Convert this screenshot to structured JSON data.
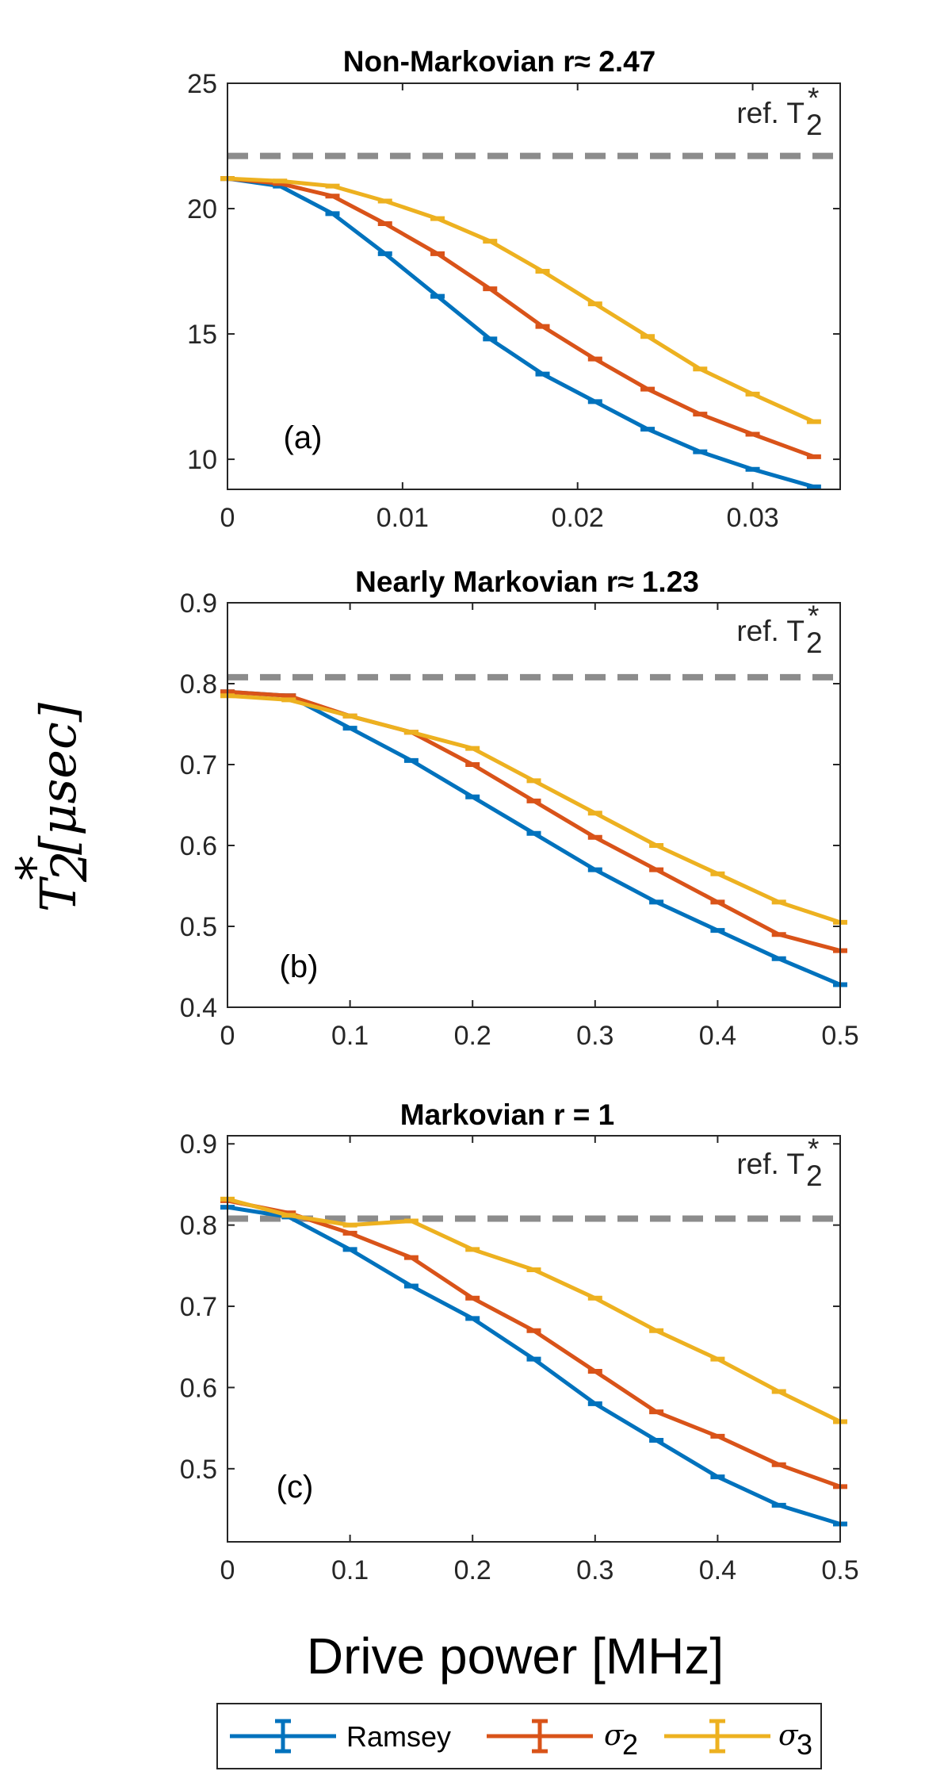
{
  "chart_data": [
    {
      "type": "line",
      "title": "Non-Markovian r≈ 2.47",
      "panel_label": "(a)",
      "ref_label": "ref. T",
      "ref_sub": "2",
      "ref_sup": "*",
      "ref_value": 22.1,
      "xlim": [
        0,
        0.035
      ],
      "ylim": [
        8.8,
        25
      ],
      "xticks": [
        0,
        0.01,
        0.02,
        0.03
      ],
      "xtick_labels": [
        "0",
        "0.01",
        "0.02",
        "0.03"
      ],
      "yticks": [
        10,
        15,
        20,
        25
      ],
      "ytick_labels": [
        "10",
        "15",
        "20",
        "25"
      ],
      "series": [
        {
          "name": "Ramsey",
          "color": "#0072BD",
          "x": [
            0,
            0.003,
            0.006,
            0.009,
            0.012,
            0.015,
            0.018,
            0.021,
            0.024,
            0.027,
            0.03,
            0.0335
          ],
          "y": [
            21.2,
            20.9,
            19.8,
            18.2,
            16.5,
            14.8,
            13.4,
            12.3,
            11.2,
            10.3,
            9.6,
            8.9
          ]
        },
        {
          "name": "σ₂",
          "color": "#D95319",
          "x": [
            0,
            0.003,
            0.006,
            0.009,
            0.012,
            0.015,
            0.018,
            0.021,
            0.024,
            0.027,
            0.03,
            0.0335
          ],
          "y": [
            21.2,
            21.0,
            20.5,
            19.4,
            18.2,
            16.8,
            15.3,
            14.0,
            12.8,
            11.8,
            11.0,
            10.1
          ]
        },
        {
          "name": "σ₃",
          "color": "#EDB120",
          "x": [
            0,
            0.003,
            0.006,
            0.009,
            0.012,
            0.015,
            0.018,
            0.021,
            0.024,
            0.027,
            0.03,
            0.0335
          ],
          "y": [
            21.2,
            21.1,
            20.9,
            20.3,
            19.6,
            18.7,
            17.5,
            16.2,
            14.9,
            13.6,
            12.6,
            11.5
          ]
        }
      ]
    },
    {
      "type": "line",
      "title": "Nearly Markovian r≈ 1.23",
      "panel_label": "(b)",
      "ref_label": "ref. T",
      "ref_sub": "2",
      "ref_sup": "*",
      "ref_value": 0.808,
      "xlim": [
        0,
        0.5
      ],
      "ylim": [
        0.4,
        0.9
      ],
      "xticks": [
        0,
        0.1,
        0.2,
        0.3,
        0.4,
        0.5
      ],
      "xtick_labels": [
        "0",
        "0.1",
        "0.2",
        "0.3",
        "0.4",
        "0.5"
      ],
      "yticks": [
        0.4,
        0.5,
        0.6,
        0.7,
        0.8,
        0.9
      ],
      "ytick_labels": [
        "0.4",
        "0.5",
        "0.6",
        "0.7",
        "0.8",
        "0.9"
      ],
      "series": [
        {
          "name": "Ramsey",
          "color": "#0072BD",
          "x": [
            0,
            0.05,
            0.1,
            0.15,
            0.2,
            0.25,
            0.3,
            0.35,
            0.4,
            0.45,
            0.5
          ],
          "y": [
            0.79,
            0.785,
            0.745,
            0.705,
            0.66,
            0.615,
            0.57,
            0.53,
            0.495,
            0.46,
            0.428
          ]
        },
        {
          "name": "σ₂",
          "color": "#D95319",
          "x": [
            0,
            0.05,
            0.1,
            0.15,
            0.2,
            0.25,
            0.3,
            0.35,
            0.4,
            0.45,
            0.5
          ],
          "y": [
            0.79,
            0.785,
            0.76,
            0.74,
            0.7,
            0.655,
            0.61,
            0.57,
            0.53,
            0.49,
            0.47
          ]
        },
        {
          "name": "σ₃",
          "color": "#EDB120",
          "x": [
            0,
            0.05,
            0.1,
            0.15,
            0.2,
            0.25,
            0.3,
            0.35,
            0.4,
            0.45,
            0.5
          ],
          "y": [
            0.785,
            0.78,
            0.76,
            0.74,
            0.72,
            0.68,
            0.64,
            0.6,
            0.565,
            0.53,
            0.505
          ]
        }
      ]
    },
    {
      "type": "line",
      "title": "Markovian r = 1",
      "panel_label": "(c)",
      "ref_label": "ref. T",
      "ref_sub": "2",
      "ref_sup": "*",
      "ref_value": 0.808,
      "xlim": [
        0,
        0.5
      ],
      "ylim": [
        0.41,
        0.91
      ],
      "xticks": [
        0,
        0.1,
        0.2,
        0.3,
        0.4,
        0.5
      ],
      "xtick_labels": [
        "0",
        "0.1",
        "0.2",
        "0.3",
        "0.4",
        "0.5"
      ],
      "yticks": [
        0.5,
        0.6,
        0.7,
        0.8,
        0.9
      ],
      "ytick_labels": [
        "0.5",
        "0.6",
        "0.7",
        "0.8",
        "0.9"
      ],
      "series": [
        {
          "name": "Ramsey",
          "color": "#0072BD",
          "x": [
            0,
            0.05,
            0.1,
            0.15,
            0.2,
            0.25,
            0.3,
            0.35,
            0.4,
            0.45,
            0.5
          ],
          "y": [
            0.822,
            0.81,
            0.77,
            0.725,
            0.685,
            0.635,
            0.58,
            0.535,
            0.49,
            0.455,
            0.432
          ]
        },
        {
          "name": "σ₂",
          "color": "#D95319",
          "x": [
            0,
            0.05,
            0.1,
            0.15,
            0.2,
            0.25,
            0.3,
            0.35,
            0.4,
            0.45,
            0.5
          ],
          "y": [
            0.83,
            0.815,
            0.79,
            0.76,
            0.71,
            0.67,
            0.62,
            0.57,
            0.54,
            0.505,
            0.478
          ]
        },
        {
          "name": "σ₃",
          "color": "#EDB120",
          "x": [
            0,
            0.05,
            0.1,
            0.15,
            0.2,
            0.25,
            0.3,
            0.35,
            0.4,
            0.45,
            0.5
          ],
          "y": [
            0.832,
            0.812,
            0.8,
            0.805,
            0.77,
            0.745,
            0.71,
            0.67,
            0.635,
            0.595,
            0.558
          ]
        }
      ]
    }
  ],
  "axis_labels": {
    "x": "Drive power [MHz]",
    "y_symbol": "T",
    "y_sub": "2",
    "y_sup": "*",
    "y_unit": "[μsec]"
  },
  "legend": {
    "ramsey": "Ramsey",
    "sigma_symbol": "σ",
    "sigma2_sub": "2",
    "sigma3_sub": "3",
    "colors": {
      "ramsey": "#0072BD",
      "sigma2": "#D95319",
      "sigma3": "#EDB120"
    }
  },
  "ref_line_color": "#8C8C8C"
}
